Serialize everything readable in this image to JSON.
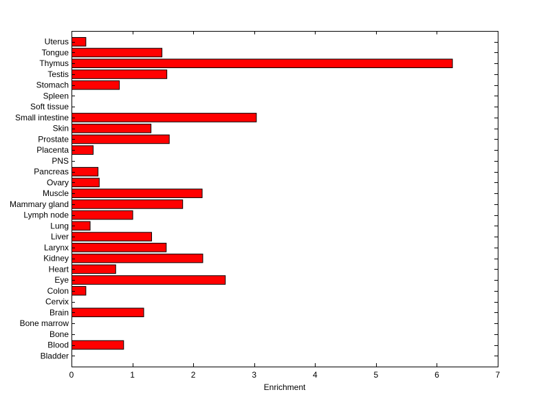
{
  "chart_data": {
    "type": "bar",
    "orientation": "horizontal",
    "title": "",
    "xlabel": "Enrichment",
    "ylabel": "",
    "xlim": [
      0,
      7
    ],
    "xticks": [
      0,
      1,
      2,
      3,
      4,
      5,
      6,
      7
    ],
    "grid": false,
    "legend": "none",
    "bar_color": "#ff0000",
    "categories": [
      "Bladder",
      "Blood",
      "Bone",
      "Bone marrow",
      "Brain",
      "Cervix",
      "Colon",
      "Eye",
      "Heart",
      "Kidney",
      "Larynx",
      "Liver",
      "Lung",
      "Lymph node",
      "Mammary gland",
      "Muscle",
      "Ovary",
      "Pancreas",
      "PNS",
      "Placenta",
      "Prostate",
      "Skin",
      "Small intestine",
      "Soft tissue",
      "Spleen",
      "Stomach",
      "Testis",
      "Thymus",
      "Tongue",
      "Uterus"
    ],
    "values": [
      0,
      0.85,
      0,
      0,
      1.18,
      0,
      0.23,
      2.52,
      0.72,
      2.15,
      1.55,
      1.31,
      0.3,
      1.0,
      1.82,
      2.14,
      0.45,
      0.43,
      0,
      0.35,
      1.6,
      1.3,
      3.03,
      0,
      0,
      0.78,
      1.56,
      6.25,
      1.48,
      0.23
    ]
  }
}
